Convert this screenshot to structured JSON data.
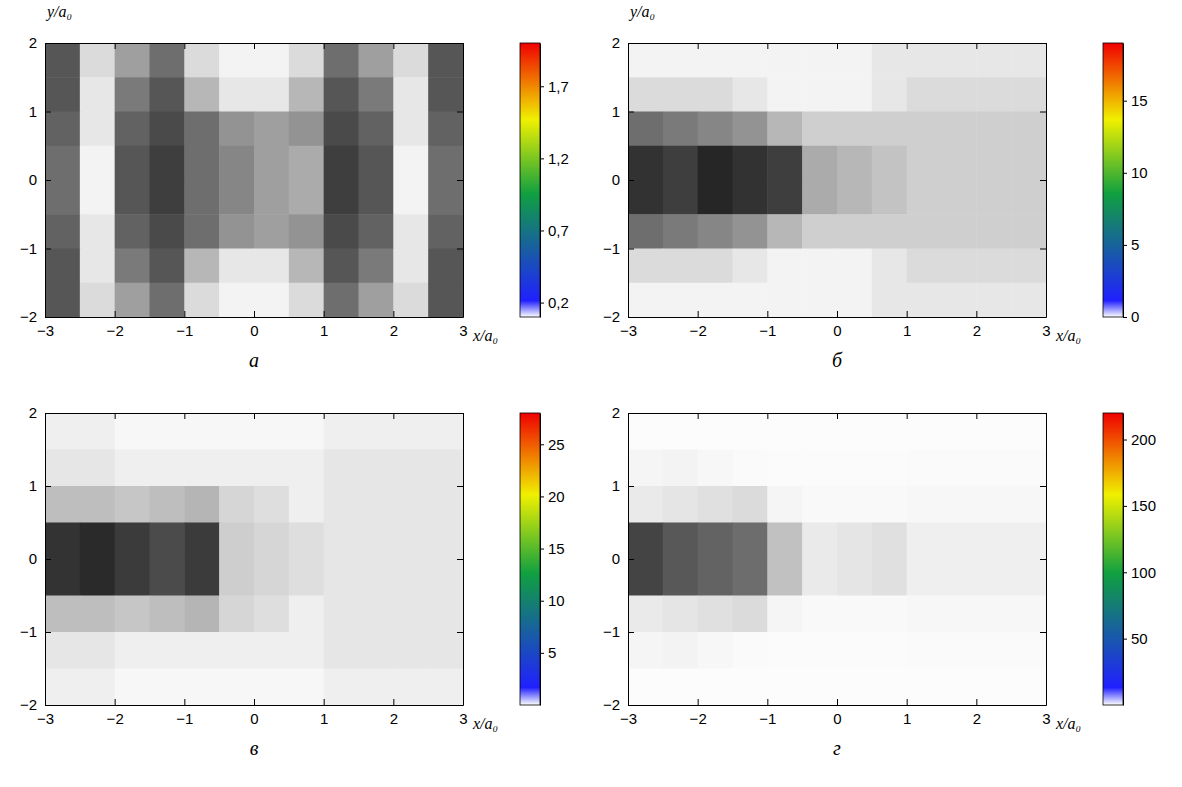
{
  "chart_data": [
    {
      "type": "heatmap",
      "title": "а",
      "x_label": "x/a₀",
      "y_label": "y/a₀",
      "xlim": [
        -3,
        3
      ],
      "ylim": [
        -2,
        2
      ],
      "xticks": [
        {
          "value": -3,
          "label": "−3"
        },
        {
          "value": -2,
          "label": "−2"
        },
        {
          "value": -1,
          "label": "−1"
        },
        0,
        1,
        2,
        3
      ],
      "yticks": [
        {
          "value": -2,
          "label": "−2"
        },
        {
          "value": -1,
          "label": "−1"
        },
        0,
        1,
        2
      ],
      "x": [
        -2.75,
        -2.25,
        -1.75,
        -1.25,
        -0.75,
        -0.25,
        0.25,
        0.75,
        1.25,
        1.75,
        2.25,
        2.75
      ],
      "y": [
        1.75,
        1.25,
        0.75,
        0.25,
        -0.25,
        -0.75,
        -1.25,
        -1.75
      ],
      "values": [
        [
          1.5,
          0.4,
          0.9,
          1.3,
          0.4,
          0.2,
          0.2,
          0.4,
          1.3,
          0.9,
          0.4,
          1.5
        ],
        [
          1.5,
          0.3,
          1.2,
          1.5,
          0.7,
          0.3,
          0.3,
          0.7,
          1.5,
          1.2,
          0.3,
          1.5
        ],
        [
          1.4,
          0.3,
          1.4,
          1.6,
          1.3,
          1.0,
          0.9,
          1.0,
          1.6,
          1.4,
          0.3,
          1.4
        ],
        [
          1.3,
          0.2,
          1.5,
          1.7,
          1.3,
          1.1,
          0.9,
          0.8,
          1.7,
          1.5,
          0.2,
          1.3
        ],
        [
          1.3,
          0.2,
          1.5,
          1.7,
          1.3,
          1.1,
          0.9,
          0.8,
          1.7,
          1.5,
          0.2,
          1.3
        ],
        [
          1.4,
          0.3,
          1.4,
          1.6,
          1.3,
          1.0,
          0.9,
          1.0,
          1.6,
          1.4,
          0.3,
          1.4
        ],
        [
          1.5,
          0.3,
          1.2,
          1.5,
          0.7,
          0.3,
          0.3,
          0.7,
          1.5,
          1.2,
          0.3,
          1.5
        ],
        [
          1.5,
          0.4,
          0.9,
          1.3,
          0.4,
          0.2,
          0.2,
          0.4,
          1.3,
          0.9,
          0.4,
          1.5
        ]
      ],
      "colorbar": {
        "range": [
          0.1,
          2.0
        ],
        "ticks": [
          {
            "value": 0.2,
            "label": "0,2"
          },
          {
            "value": 0.7,
            "label": "0,7"
          },
          {
            "value": 1.2,
            "label": "1,2"
          },
          {
            "value": 1.7,
            "label": "1,7"
          }
        ]
      }
    },
    {
      "type": "heatmap",
      "title": "б",
      "x_label": "x/a₀",
      "y_label": "y/a₀",
      "xlim": [
        -3,
        3
      ],
      "ylim": [
        -2,
        2
      ],
      "xticks": [
        {
          "value": -3,
          "label": "−3"
        },
        {
          "value": -2,
          "label": "−2"
        },
        {
          "value": -1,
          "label": "−1"
        },
        0,
        1,
        2,
        3
      ],
      "yticks": [
        {
          "value": -2,
          "label": "−2"
        },
        {
          "value": -1,
          "label": "−1"
        },
        0,
        1,
        2
      ],
      "x": [
        -2.75,
        -2.25,
        -1.75,
        -1.25,
        -0.75,
        -0.25,
        0.25,
        0.75,
        1.25,
        1.75,
        2.25,
        2.75
      ],
      "y": [
        1.75,
        1.25,
        0.75,
        0.25,
        -0.25,
        -0.75,
        -1.25,
        -1.75
      ],
      "values": [
        [
          1,
          1,
          1,
          1,
          1,
          1,
          1,
          2,
          2,
          2,
          2,
          2
        ],
        [
          3,
          3,
          3,
          2,
          1,
          1,
          1,
          2,
          3,
          3,
          3,
          3
        ],
        [
          12,
          11,
          10,
          9,
          6,
          4,
          4,
          4,
          4,
          4,
          4,
          4
        ],
        [
          17,
          16,
          18,
          17,
          16,
          7,
          6,
          5,
          4,
          4,
          4,
          4
        ],
        [
          17,
          16,
          18,
          17,
          16,
          7,
          6,
          5,
          4,
          4,
          4,
          4
        ],
        [
          12,
          11,
          10,
          9,
          6,
          4,
          4,
          4,
          4,
          4,
          4,
          4
        ],
        [
          3,
          3,
          3,
          2,
          1,
          1,
          1,
          2,
          3,
          3,
          3,
          3
        ],
        [
          1,
          1,
          1,
          1,
          1,
          1,
          1,
          2,
          2,
          2,
          2,
          2
        ]
      ],
      "colorbar": {
        "range": [
          0,
          19
        ],
        "ticks": [
          0,
          5,
          10,
          15
        ]
      }
    },
    {
      "type": "heatmap",
      "title": "в",
      "x_label": "x/a₀",
      "xlim": [
        -3,
        3
      ],
      "ylim": [
        -2,
        2
      ],
      "xticks": [
        {
          "value": -3,
          "label": "−3"
        },
        {
          "value": -2,
          "label": "−2"
        },
        {
          "value": -1,
          "label": "−1"
        },
        0,
        1,
        2,
        3
      ],
      "yticks": [
        {
          "value": -2,
          "label": "−2"
        },
        {
          "value": -1,
          "label": "−1"
        },
        0,
        1,
        2
      ],
      "x": [
        -2.75,
        -2.25,
        -1.75,
        -1.25,
        -0.75,
        -0.25,
        0.25,
        0.75,
        1.25,
        1.75,
        2.25,
        2.75
      ],
      "y": [
        1.75,
        1.25,
        0.75,
        0.25,
        -0.25,
        -0.75,
        -1.25,
        -1.75
      ],
      "values": [
        [
          2,
          2,
          1,
          1,
          1,
          1,
          1,
          1,
          2,
          2,
          2,
          2
        ],
        [
          3,
          3,
          2,
          2,
          2,
          2,
          2,
          2,
          3,
          3,
          3,
          3
        ],
        [
          8,
          8,
          7,
          8,
          9,
          5,
          4,
          2,
          3,
          3,
          3,
          3
        ],
        [
          25,
          26,
          24,
          22,
          24,
          6,
          5,
          4,
          3,
          3,
          3,
          3
        ],
        [
          25,
          26,
          24,
          22,
          24,
          6,
          5,
          4,
          3,
          3,
          3,
          3
        ],
        [
          8,
          8,
          7,
          8,
          9,
          5,
          4,
          2,
          3,
          3,
          3,
          3
        ],
        [
          3,
          3,
          2,
          2,
          2,
          2,
          2,
          2,
          3,
          3,
          3,
          3
        ],
        [
          2,
          2,
          1,
          1,
          1,
          1,
          1,
          1,
          2,
          2,
          2,
          2
        ]
      ],
      "colorbar": {
        "range": [
          0,
          28
        ],
        "ticks": [
          5,
          10,
          15,
          20,
          25
        ]
      }
    },
    {
      "type": "heatmap",
      "title": "г",
      "x_label": "x/a₀",
      "xlim": [
        -3,
        3
      ],
      "ylim": [
        -2,
        2
      ],
      "xticks": [
        {
          "value": -3,
          "label": "−3"
        },
        {
          "value": -2,
          "label": "−2"
        },
        {
          "value": -1,
          "label": "−1"
        },
        0,
        1,
        2,
        3
      ],
      "yticks": [
        {
          "value": -2,
          "label": "−2"
        },
        {
          "value": -1,
          "label": "−1"
        },
        0,
        1,
        2
      ],
      "x": [
        -2.75,
        -2.25,
        -1.75,
        -1.25,
        -0.75,
        -0.25,
        0.25,
        0.75,
        1.25,
        1.75,
        2.25,
        2.75
      ],
      "y": [
        1.75,
        1.25,
        0.75,
        0.25,
        -0.25,
        -0.75,
        -1.25,
        -1.75
      ],
      "values": [
        [
          3,
          3,
          3,
          3,
          3,
          3,
          3,
          3,
          3,
          3,
          3,
          3
        ],
        [
          10,
          12,
          8,
          5,
          4,
          4,
          4,
          4,
          5,
          5,
          5,
          5
        ],
        [
          20,
          25,
          30,
          35,
          10,
          6,
          6,
          6,
          8,
          8,
          8,
          8
        ],
        [
          180,
          160,
          150,
          140,
          60,
          20,
          25,
          30,
          15,
          15,
          15,
          15
        ],
        [
          180,
          160,
          150,
          140,
          60,
          20,
          25,
          30,
          15,
          15,
          15,
          15
        ],
        [
          20,
          25,
          30,
          35,
          10,
          6,
          6,
          6,
          8,
          8,
          8,
          8
        ],
        [
          10,
          12,
          8,
          5,
          4,
          4,
          4,
          4,
          5,
          5,
          5,
          5
        ],
        [
          3,
          3,
          3,
          3,
          3,
          3,
          3,
          3,
          3,
          3,
          3,
          3
        ]
      ],
      "colorbar": {
        "range": [
          0,
          220
        ],
        "ticks": [
          50,
          100,
          150,
          200
        ]
      }
    }
  ]
}
